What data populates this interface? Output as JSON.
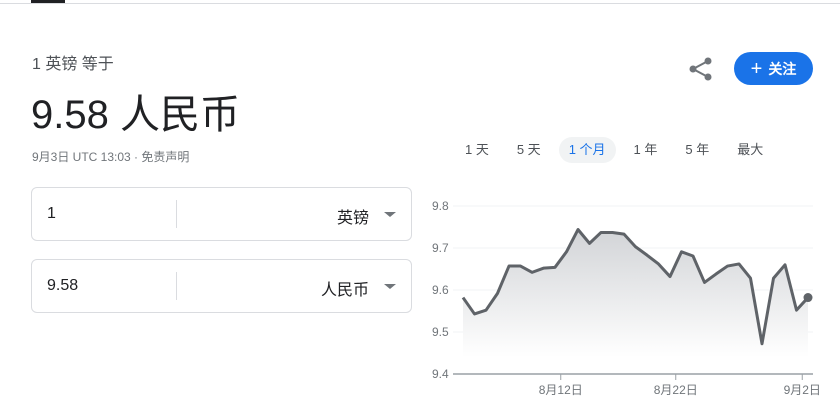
{
  "header": {
    "subtitle": "1 英镑 等于",
    "value": "9.58 人民币",
    "meta": "9月3日 UTC 13:03 · 免责声明",
    "follow_label": "关注",
    "follow_icon": "plus-icon",
    "share_icon": "share-icon",
    "accent_color": "#1a73e8"
  },
  "ranges": [
    {
      "label": "1 天",
      "active": false
    },
    {
      "label": "5 天",
      "active": false
    },
    {
      "label": "1 个月",
      "active": true
    },
    {
      "label": "1 年",
      "active": false
    },
    {
      "label": "5 年",
      "active": false
    },
    {
      "label": "最大",
      "active": false
    }
  ],
  "converter": {
    "from": {
      "value": "1",
      "currency": "英镑"
    },
    "to": {
      "value": "9.58",
      "currency": "人民币"
    }
  },
  "chart_data": {
    "type": "area",
    "x": [
      "8/4",
      "8/5",
      "8/6",
      "8/7",
      "8/8",
      "8/9",
      "8/10",
      "8/11",
      "8/12",
      "8/13",
      "8/14",
      "8/15",
      "8/16",
      "8/17",
      "8/18",
      "8/19",
      "8/20",
      "8/21",
      "8/22",
      "8/23",
      "8/24",
      "8/25",
      "8/26",
      "8/27",
      "8/28",
      "8/29",
      "8/30",
      "8/31",
      "9/1",
      "9/2",
      "9/3"
    ],
    "values": [
      9.582,
      9.543,
      9.552,
      9.592,
      9.657,
      9.657,
      9.642,
      9.652,
      9.654,
      9.691,
      9.744,
      9.711,
      9.737,
      9.737,
      9.733,
      9.703,
      9.683,
      9.662,
      9.632,
      9.691,
      9.681,
      9.618,
      9.638,
      9.657,
      9.662,
      9.628,
      9.472,
      9.628,
      9.66,
      9.552,
      9.582
    ],
    "ylim": [
      9.4,
      9.8
    ],
    "yticks": [
      "9.4",
      "9.5",
      "9.6",
      "9.7",
      "9.8"
    ],
    "xticks": [
      {
        "label": "8月12日",
        "index": 8
      },
      {
        "label": "8月22日",
        "index": 18
      },
      {
        "label": "9月2日",
        "index": 29
      }
    ],
    "grid": true,
    "line_color": "#5f6368"
  }
}
